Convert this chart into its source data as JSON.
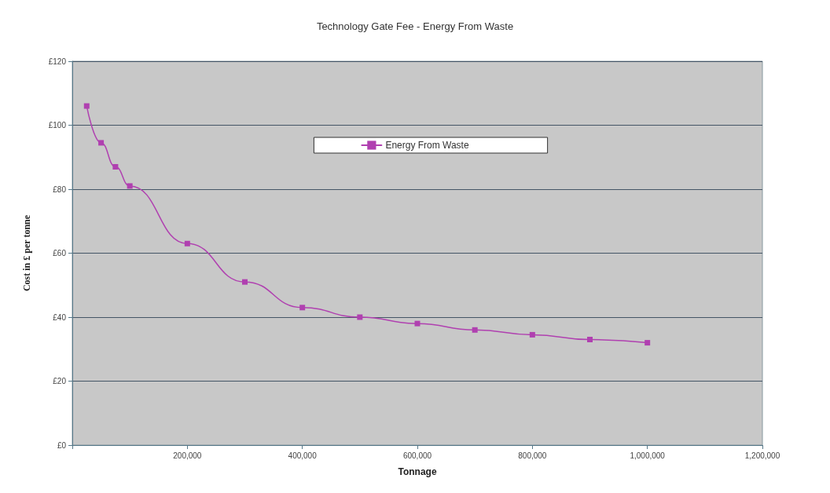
{
  "chart_data": {
    "type": "line",
    "title": "Technology Gate Fee - Energy From Waste",
    "xlabel": "Tonnage",
    "ylabel": "Cost in £ per tonne",
    "x": [
      25000,
      50000,
      75000,
      100000,
      200000,
      300000,
      400000,
      500000,
      600000,
      700000,
      800000,
      900000,
      1000000
    ],
    "series": [
      {
        "name": "Energy From Waste",
        "color": "#b040b0",
        "values": [
          106,
          94.5,
          87,
          81,
          63,
          51,
          43,
          40,
          38,
          36,
          34.5,
          33,
          32
        ]
      }
    ],
    "xlim": [
      0,
      1200000
    ],
    "xticks": [
      {
        "value": 0,
        "label": null
      },
      {
        "value": 200000,
        "label": "200,000"
      },
      {
        "value": 400000,
        "label": "400,000"
      },
      {
        "value": 600000,
        "label": "600,000"
      },
      {
        "value": 800000,
        "label": "800,000"
      },
      {
        "value": 1000000,
        "label": "1,000,000"
      },
      {
        "value": 1200000,
        "label": "1,200,000"
      }
    ],
    "ylim": [
      0,
      120
    ],
    "yticks": [
      {
        "value": 0,
        "label": "£0"
      },
      {
        "value": 20,
        "label": "£20"
      },
      {
        "value": 40,
        "label": "£40"
      },
      {
        "value": 60,
        "label": "£60"
      },
      {
        "value": 80,
        "label": "£80"
      },
      {
        "value": 100,
        "label": "£100"
      },
      {
        "value": 120,
        "label": "£120"
      }
    ],
    "grid": "y",
    "legend": "top",
    "marker": "square",
    "line_style": "solid"
  }
}
